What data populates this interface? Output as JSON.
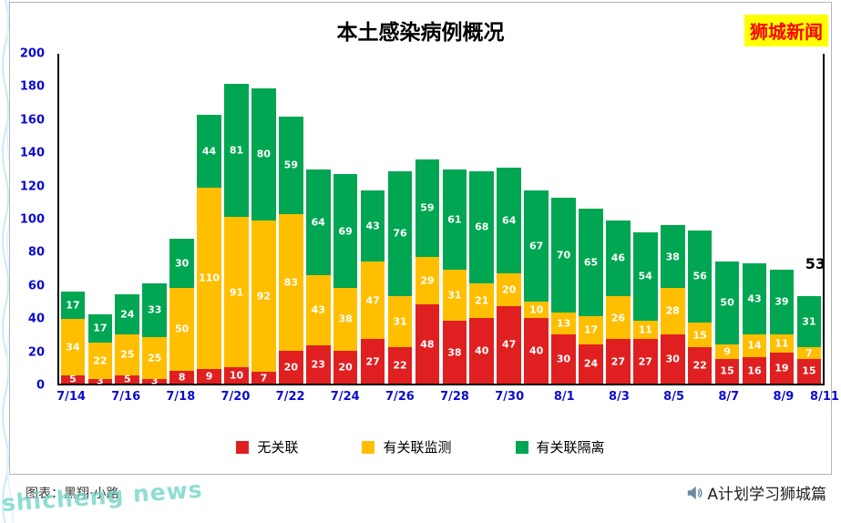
{
  "page": {
    "brand_badge": "狮城新闻",
    "watermark": "shicheng news",
    "credit": "图表：黑翔·小路",
    "attribution": "A计划学习狮城篇",
    "top_left_marks": "↟↟"
  },
  "chart_data": {
    "type": "bar",
    "stacked": true,
    "title": "本土感染病例概况",
    "xlabel": "",
    "ylabel": "",
    "ylim": [
      0,
      200
    ],
    "y_ticks": [
      0,
      20,
      40,
      60,
      80,
      100,
      120,
      140,
      160,
      180,
      200
    ],
    "grid": false,
    "legend_position": "bottom",
    "x": [
      "7/14",
      "7/15",
      "7/16",
      "7/17",
      "7/18",
      "7/19",
      "7/20",
      "7/21",
      "7/22",
      "7/23",
      "7/24",
      "7/25",
      "7/26",
      "7/27",
      "7/28",
      "7/29",
      "7/30",
      "7/31",
      "8/1",
      "8/2",
      "8/3",
      "8/4",
      "8/5",
      "8/6",
      "8/7",
      "8/8",
      "8/9",
      "8/10"
    ],
    "x_tick_labels": [
      "7/14",
      "7/16",
      "7/18",
      "7/20",
      "7/22",
      "7/24",
      "7/26",
      "7/28",
      "7/30",
      "8/1",
      "8/3",
      "8/5",
      "8/7",
      "8/9",
      "8/11"
    ],
    "series": [
      {
        "name": "无关联",
        "color": "#e02020",
        "values": [
          5,
          3,
          5,
          3,
          8,
          9,
          10,
          7,
          20,
          23,
          20,
          27,
          22,
          48,
          38,
          40,
          47,
          40,
          30,
          24,
          27,
          27,
          30,
          22,
          15,
          16,
          19,
          15
        ]
      },
      {
        "name": "有关联监测",
        "color": "#ffbf00",
        "values": [
          34,
          22,
          25,
          25,
          50,
          110,
          91,
          92,
          83,
          43,
          38,
          47,
          31,
          29,
          31,
          21,
          20,
          10,
          13,
          17,
          26,
          11,
          28,
          15,
          9,
          14,
          11,
          7
        ]
      },
      {
        "name": "有关联隔离",
        "color": "#00a651",
        "values": [
          17,
          17,
          24,
          33,
          30,
          44,
          81,
          80,
          59,
          64,
          69,
          43,
          76,
          59,
          61,
          68,
          64,
          67,
          70,
          65,
          46,
          54,
          38,
          56,
          50,
          43,
          39,
          31
        ]
      }
    ],
    "annotation": {
      "text": "53",
      "bar_index": 27
    }
  }
}
